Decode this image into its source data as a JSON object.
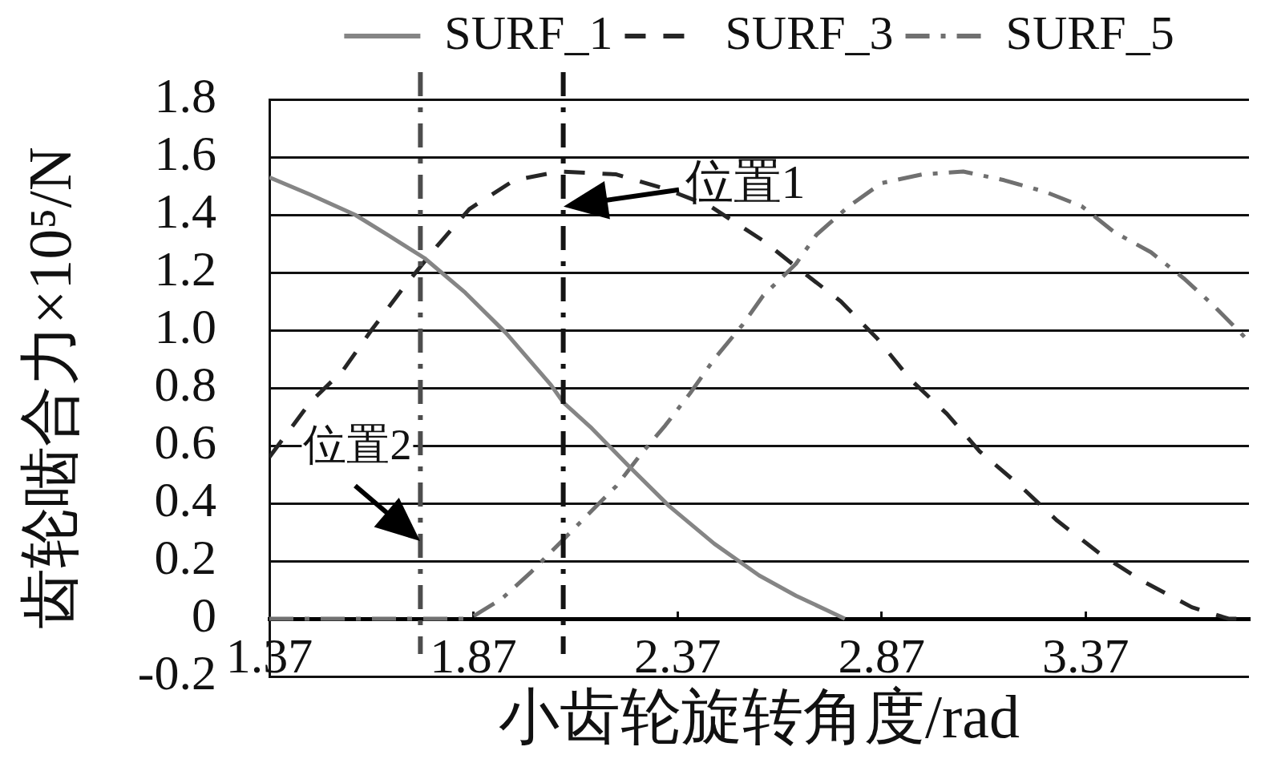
{
  "chart_data": {
    "type": "line",
    "xlabel": "小齿轮旋转角度/rad",
    "ylabel": "齿轮啮合力×10⁵/N",
    "xlim": [
      1.37,
      3.77
    ],
    "xticks": [
      1.37,
      1.87,
      2.37,
      2.87,
      3.37
    ],
    "ylim": [
      -0.2,
      1.8
    ],
    "yticks": [
      -0.2,
      0,
      0.2,
      0.4,
      0.6,
      0.8,
      {
        "value": 1,
        "label": "1.0"
      },
      1.2,
      1.4,
      1.6,
      1.8
    ],
    "grid": "y",
    "legend": "top",
    "series": [
      {
        "name": "SURF_1",
        "color": "#858585",
        "line_style": "solid",
        "x": [
          1.37,
          1.47,
          1.58,
          1.66,
          1.75,
          1.85,
          1.95,
          2.06,
          2.09,
          2.16,
          2.25,
          2.35,
          2.46,
          2.57,
          2.66,
          2.78
        ],
        "values": [
          1.53,
          1.47,
          1.4,
          1.33,
          1.25,
          1.13,
          0.99,
          0.81,
          0.75,
          0.66,
          0.53,
          0.39,
          0.26,
          0.15,
          0.08,
          0.0
        ]
      },
      {
        "name": "SURF_3",
        "color": "#262626",
        "line_style": "dashed",
        "x": [
          1.37,
          1.47,
          1.55,
          1.62,
          1.7,
          1.78,
          1.86,
          1.97,
          2.08,
          2.22,
          2.34,
          2.45,
          2.58,
          2.66,
          2.77,
          2.86,
          2.94,
          3.03,
          3.11,
          3.21,
          3.3,
          3.41,
          3.51,
          3.63,
          3.72,
          3.77
        ],
        "values": [
          0.56,
          0.75,
          0.86,
          1.0,
          1.15,
          1.29,
          1.42,
          1.52,
          1.55,
          1.54,
          1.49,
          1.43,
          1.31,
          1.22,
          1.1,
          0.97,
          0.83,
          0.71,
          0.58,
          0.46,
          0.34,
          0.22,
          0.13,
          0.04,
          0.0,
          0.0
        ]
      },
      {
        "name": "SURF_5",
        "color": "#707070",
        "line_style": "dashdot",
        "x": [
          1.37,
          1.86,
          1.94,
          2.01,
          2.08,
          2.15,
          2.22,
          2.28,
          2.34,
          2.4,
          2.46,
          2.53,
          2.58,
          2.66,
          2.71,
          2.79,
          2.87,
          2.97,
          3.07,
          3.17,
          3.27,
          3.36,
          3.44,
          3.53,
          3.61,
          3.68,
          3.75,
          3.77
        ],
        "values": [
          0.0,
          0.0,
          0.07,
          0.16,
          0.26,
          0.36,
          0.46,
          0.57,
          0.67,
          0.78,
          0.9,
          1.02,
          1.12,
          1.23,
          1.33,
          1.43,
          1.51,
          1.54,
          1.55,
          1.52,
          1.48,
          1.43,
          1.34,
          1.27,
          1.18,
          1.09,
          0.99,
          0.96
        ]
      }
    ],
    "ref_lines": [
      {
        "axis": "x",
        "value": 1.74,
        "color": "#4d4d4d",
        "line_style": "dashdot"
      },
      {
        "axis": "x",
        "value": 2.09,
        "color": "#141414",
        "line_style": "dashdot"
      }
    ],
    "annotations": [
      {
        "text": "位置1",
        "x": 2.09,
        "y": 1.43
      },
      {
        "text": "位置2",
        "x": 1.74,
        "y": 0.27
      }
    ]
  }
}
